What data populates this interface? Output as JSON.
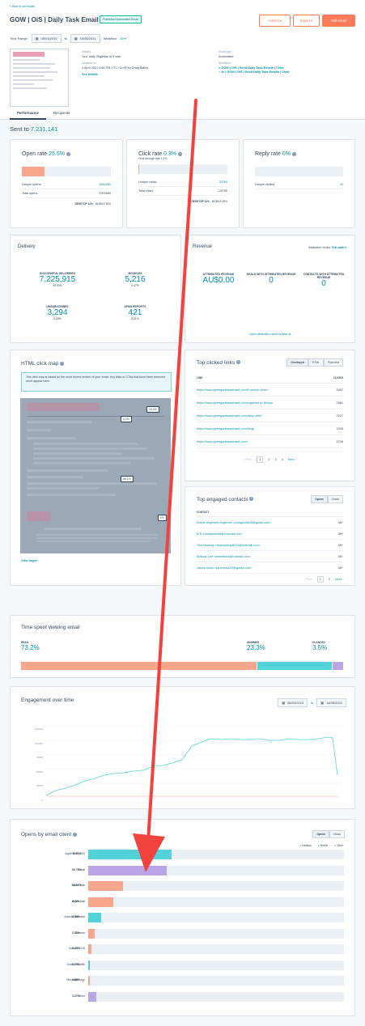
{
  "header": {
    "back_link": "« Back to all emails",
    "title": "GOW | OiS | Daily Task Email",
    "status_badge": "Published Automated Email",
    "actions_label": "Actions",
    "export_label": "Export",
    "edit_label": "Edit email",
    "time_range_label": "Time Range:",
    "date_from": "08/03/2019",
    "date_to": "14/06/2021",
    "to_label": "to",
    "workflow_label": "Workflow",
    "workflow_value": "All"
  },
  "details": {
    "subject_label": "Subject",
    "subject": "Your daily Organise In 5 task",
    "updated_label": "Updated on",
    "updated": "3 April 2021 4:56 PM UTC+11:00 by Craig Bailey",
    "see_details": "See details",
    "email_type_label": "Email type",
    "email_type": "Automated",
    "workflows_label": "Workflows",
    "workflows": [
      "GOW | OiS | Send Daily Task Emails | Child",
      "zz | GOW | OiS | Send Daily Task Emails | Child"
    ]
  },
  "tabs": [
    "Performance",
    "Recipients"
  ],
  "sent_to": {
    "label": "Sent to",
    "value": "7,231,141"
  },
  "open_rate": {
    "label": "Open rate",
    "value": "25.5%",
    "fill": 0.255,
    "rows": [
      {
        "label": "Unique opens",
        "value": "1844960"
      },
      {
        "label": "Total opens",
        "value": "2929889"
      }
    ],
    "desktop": "DESKTOP 41%",
    "mobile": "MOBILE 56%"
  },
  "click_rate": {
    "label": "Click rate",
    "value": "0.3%",
    "subtext": "Click-through rate 1.1%",
    "fill": 0.003,
    "rows": [
      {
        "label": "Unique clicks",
        "value": "20055"
      },
      {
        "label": "Total clicks",
        "value": "23799"
      }
    ],
    "desktop": "DESKTOP 41%",
    "mobile": "MOBILE 59%"
  },
  "reply_rate": {
    "label": "Reply rate",
    "value": "0%",
    "fill": 0,
    "rows": [
      {
        "label": "Unique replies",
        "value": "44"
      }
    ]
  },
  "delivery": {
    "title": "Delivery",
    "stats": [
      {
        "label": "SUCCESSFUL DELIVERIES",
        "value": "7,225,915",
        "pct": "99.93%"
      },
      {
        "label": "BOUNCES",
        "value": "5,216",
        "pct": "0.07%"
      },
      {
        "label": "UNSUBSCRIBES",
        "value": "3,294",
        "pct": "0.05%"
      },
      {
        "label": "SPAM REPORTS",
        "value": "421",
        "pct": "0.01%"
      }
    ]
  },
  "revenue": {
    "title": "Revenue",
    "attribution_label": "Attribution model",
    "attribution_value": "Full-path",
    "stats": [
      {
        "label": "ATTRIBUTED REVENUE",
        "value": "AU$0.00"
      },
      {
        "label": "DEALS WITH ATTRIBUTED REVENUE",
        "value": "0"
      },
      {
        "label": "CONTACTS WITH ATTRIBUTED REVENUE",
        "value": "0"
      }
    ],
    "builder_link": "Open attribution report builder"
  },
  "click_map": {
    "title": "HTML click map",
    "notice": "This click map is based on the most recent version of your email. Any links or CTAs that have been removed won't appear here.",
    "markers": [
      "16.4%",
      "0.2%",
      "56.1%",
      "0%"
    ],
    "view_larger": "View larger"
  },
  "top_links": {
    "title": "Top clicked links",
    "toggles": [
      "Overlayed",
      "HTML",
      "Plain text"
    ],
    "col_link": "LINK",
    "col_clicks": "CLICKS",
    "rows": [
      {
        "url": "https://www.getorganisedwizard.com/5-minute-timer/",
        "clicks": "3457"
      },
      {
        "url": "https://www.getorganisedwizard.com/organise-in-5/stop/",
        "clicks": "2961"
      },
      {
        "url": "https://www.getorganisedwizard.com/diary-offer/",
        "clicks": "2227"
      },
      {
        "url": "https://www.getorganisedwizard.com/blog/",
        "clicks": "1928"
      },
      {
        "url": "https://www.getorganisedwizard.com/",
        "clicks": "1709"
      }
    ],
    "pager": {
      "prev": "Prev",
      "pages": [
        "1",
        "2",
        "3",
        "4"
      ],
      "next": "Next"
    }
  },
  "top_contacts": {
    "title": "Top engaged contacts",
    "toggles": [
      "Opens",
      "Clicks"
    ],
    "col_contact": "CONTACT",
    "rows": [
      {
        "name": "Noelle Angevine Angevine <nangevine28@gmail.com>",
        "count": "38+"
      },
      {
        "name": "B B <barbarabrett@comcast.net>",
        "count": "38+"
      },
      {
        "name": "Tina Mackay <tinamackay8212@hotmail.com>",
        "count": "38+"
      },
      {
        "name": "Belinda Lee <leebelinda@hotmail.com>",
        "count": "38+"
      },
      {
        "name": "Janice Moss <janmoss120@gmail.com>",
        "count": "38+"
      }
    ],
    "pager": {
      "prev": "Prev",
      "pages": [
        "1",
        "2"
      ],
      "next": "Next"
    }
  },
  "time_spent": {
    "title": "Time spent viewing email",
    "segments": [
      {
        "label": "READ",
        "value": "73.2%",
        "fraction": 0.732,
        "color": "#f8a78d"
      },
      {
        "label": "SKIMMED",
        "value": "23.3%",
        "fraction": 0.233,
        "color": "#51d3d9"
      },
      {
        "label": "GLANCED",
        "value": "3.5%",
        "fraction": 0.035,
        "color": "#b9a5e8"
      }
    ]
  },
  "engagement": {
    "title": "Engagement over time",
    "date_from": "08/03/2019",
    "date_to": "14/06/2021",
    "to_label": "to",
    "y_ticks": [
      "125000",
      "100000",
      "75000",
      "50000",
      "25000",
      "0"
    ]
  },
  "clients": {
    "title": "Opens by email client",
    "toggles": [
      "Opens",
      "Clicks"
    ],
    "legend": [
      "Desktop",
      "Mobile",
      "Other"
    ],
    "rows": [
      {
        "name": "Apple Mail (iOS)",
        "pct": "32.71%",
        "fraction": 0.3271,
        "color": "#51d3d9"
      },
      {
        "name": "Gmail",
        "pct": "30.73%",
        "fraction": 0.3073,
        "color": "#b9a5e8"
      },
      {
        "name": "Yahoo Mail",
        "pct": "13.67%",
        "fraction": 0.1367,
        "color": "#f8a78d"
      },
      {
        "name": "Apple Mail",
        "pct": "9.72%",
        "fraction": 0.0972,
        "color": "#f8a78d"
      },
      {
        "name": "Android webview",
        "pct": "4.99%",
        "fraction": 0.0499,
        "color": "#51d3d9"
      },
      {
        "name": "Chrome",
        "pct": "2.51%",
        "fraction": 0.0251,
        "color": "#f8a78d"
      },
      {
        "name": "Outlook 2019",
        "pct": "1.37%",
        "fraction": 0.0137,
        "color": "#f8a78d"
      },
      {
        "name": "Outlook Mobile",
        "pct": "0.75%",
        "fraction": 0.0075,
        "color": "#51d3d9"
      },
      {
        "name": "Microsoft Edge",
        "pct": "0.69%",
        "fraction": 0.0069,
        "color": "#f8a78d"
      },
      {
        "name": "Other",
        "pct": "3.27%",
        "fraction": 0.0327,
        "color": "#b9a5e8"
      }
    ]
  },
  "annotation_color": "#f2423e"
}
